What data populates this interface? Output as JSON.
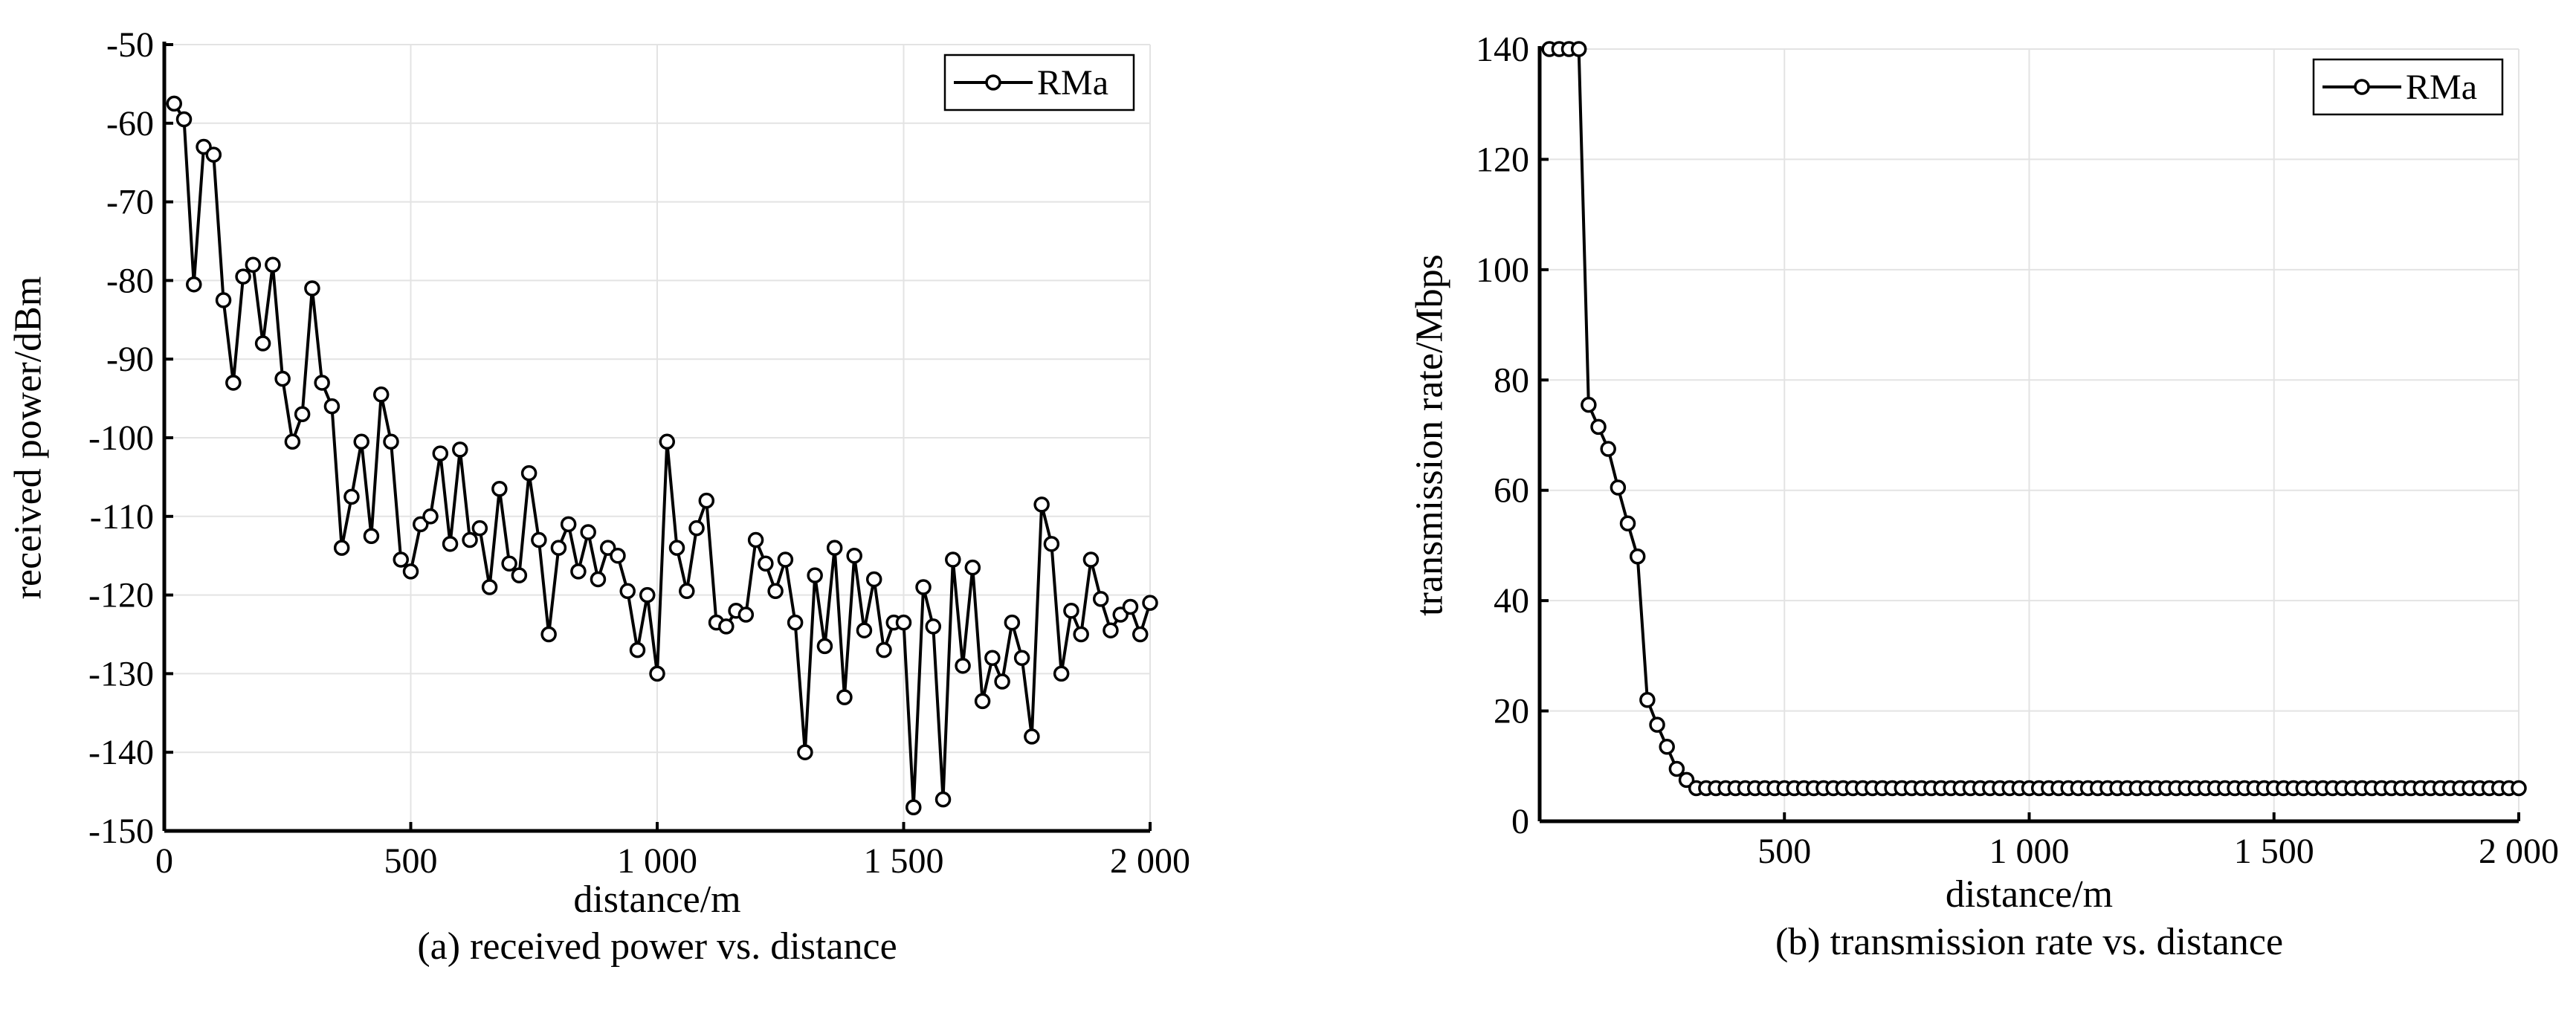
{
  "chart_data": [
    {
      "type": "line",
      "xlabel": "distance/m",
      "ylabel": "received power/dBm",
      "caption": "(a) received power vs. distance",
      "x": [
        20,
        40,
        60,
        80,
        100,
        120,
        140,
        160,
        180,
        200,
        220,
        240,
        260,
        280,
        300,
        320,
        340,
        360,
        380,
        400,
        420,
        440,
        460,
        480,
        500,
        520,
        540,
        560,
        580,
        600,
        620,
        640,
        660,
        680,
        700,
        720,
        740,
        760,
        780,
        800,
        820,
        840,
        860,
        880,
        900,
        920,
        940,
        960,
        980,
        1000,
        1020,
        1040,
        1060,
        1080,
        1100,
        1120,
        1140,
        1160,
        1180,
        1200,
        1220,
        1240,
        1260,
        1280,
        1300,
        1320,
        1340,
        1360,
        1380,
        1400,
        1420,
        1440,
        1460,
        1480,
        1500,
        1520,
        1540,
        1560,
        1580,
        1600,
        1620,
        1640,
        1660,
        1680,
        1700,
        1720,
        1740,
        1760,
        1780,
        1800,
        1820,
        1840,
        1860,
        1880,
        1900,
        1920,
        1940,
        1960,
        1980,
        2000
      ],
      "series": [
        {
          "name": "RMa",
          "color": "#000000",
          "values": [
            -57.5,
            -59.5,
            -80.5,
            -63,
            -64,
            -82.5,
            -93,
            -79.5,
            -78,
            -88,
            -78,
            -92.5,
            -100.5,
            -97,
            -81,
            -93,
            -96,
            -114,
            -107.5,
            -100.5,
            -112.5,
            -94.5,
            -100.5,
            -115.5,
            -117,
            -111,
            -110,
            -102,
            -113.5,
            -101.5,
            -113,
            -111.5,
            -119,
            -106.5,
            -116,
            -117.5,
            -104.5,
            -113,
            -125,
            -114,
            -111,
            -117,
            -112,
            -118,
            -114,
            -115,
            -119.5,
            -127,
            -120,
            -130,
            -100.5,
            -114,
            -119.5,
            -111.5,
            -108,
            -123.5,
            -124,
            -122,
            -122.5,
            -113,
            -116,
            -119.5,
            -115.5,
            -123.5,
            -140,
            -117.5,
            -126.5,
            -114,
            -133,
            -115,
            -124.5,
            -118,
            -127,
            -123.5,
            -123.5,
            -147,
            -119,
            -124,
            -146,
            -115.5,
            -129,
            -116.5,
            -133.5,
            -128,
            -131,
            -123.5,
            -128,
            -138,
            -108.5,
            -113.5,
            -130,
            -122,
            -125,
            -115.5,
            -120.5,
            -124.5,
            -122.5,
            -121.5,
            -125,
            -121
          ]
        }
      ],
      "xlim": [
        0,
        2000
      ],
      "xticks": [
        0,
        500,
        {
          "value": 1000,
          "label": "1 000"
        },
        {
          "value": 1500,
          "label": "1 500"
        },
        {
          "value": 2000,
          "label": "2 000"
        }
      ],
      "ylim": [
        -150,
        -50
      ],
      "yticks": [
        -150,
        -140,
        -130,
        -120,
        -110,
        -100,
        -90,
        -80,
        -70,
        -60,
        -50
      ],
      "grid": true,
      "legend": "upper right"
    },
    {
      "type": "line",
      "xlabel": "distance/m",
      "ylabel": "transmission rate/Mbps",
      "caption": "(b) transmission rate vs. distance",
      "x": [
        20,
        40,
        60,
        80,
        100,
        120,
        140,
        160,
        180,
        200,
        220,
        240,
        260,
        280,
        300,
        320,
        340,
        360,
        380,
        400,
        420,
        440,
        460,
        480,
        500,
        520,
        540,
        560,
        580,
        600,
        620,
        640,
        660,
        680,
        700,
        720,
        740,
        760,
        780,
        800,
        820,
        840,
        860,
        880,
        900,
        920,
        940,
        960,
        980,
        1000,
        1020,
        1040,
        1060,
        1080,
        1100,
        1120,
        1140,
        1160,
        1180,
        1200,
        1220,
        1240,
        1260,
        1280,
        1300,
        1320,
        1340,
        1360,
        1380,
        1400,
        1420,
        1440,
        1460,
        1480,
        1500,
        1520,
        1540,
        1560,
        1580,
        1600,
        1620,
        1640,
        1660,
        1680,
        1700,
        1720,
        1740,
        1760,
        1780,
        1800,
        1820,
        1840,
        1860,
        1880,
        1900,
        1920,
        1940,
        1960,
        1980,
        2000
      ],
      "series": [
        {
          "name": "RMa",
          "color": "#000000",
          "values": [
            140,
            140,
            140,
            140,
            75.5,
            71.5,
            67.5,
            60.5,
            54,
            48,
            22,
            17.5,
            13.5,
            9.5,
            7.5,
            6,
            6,
            6,
            6,
            6,
            6,
            6,
            6,
            6,
            6,
            6,
            6,
            6,
            6,
            6,
            6,
            6,
            6,
            6,
            6,
            6,
            6,
            6,
            6,
            6,
            6,
            6,
            6,
            6,
            6,
            6,
            6,
            6,
            6,
            6,
            6,
            6,
            6,
            6,
            6,
            6,
            6,
            6,
            6,
            6,
            6,
            6,
            6,
            6,
            6,
            6,
            6,
            6,
            6,
            6,
            6,
            6,
            6,
            6,
            6,
            6,
            6,
            6,
            6,
            6,
            6,
            6,
            6,
            6,
            6,
            6,
            6,
            6,
            6,
            6,
            6,
            6,
            6,
            6,
            6,
            6,
            6,
            6,
            6,
            6
          ]
        }
      ],
      "xlim": [
        0,
        2000
      ],
      "xticks": [
        500,
        {
          "value": 1000,
          "label": "1 000"
        },
        {
          "value": 1500,
          "label": "1 500"
        },
        {
          "value": 2000,
          "label": "2 000"
        }
      ],
      "ylim": [
        0,
        140
      ],
      "yticks": [
        0,
        20,
        40,
        60,
        80,
        100,
        120,
        140
      ],
      "grid": true,
      "legend": "upper right"
    }
  ]
}
